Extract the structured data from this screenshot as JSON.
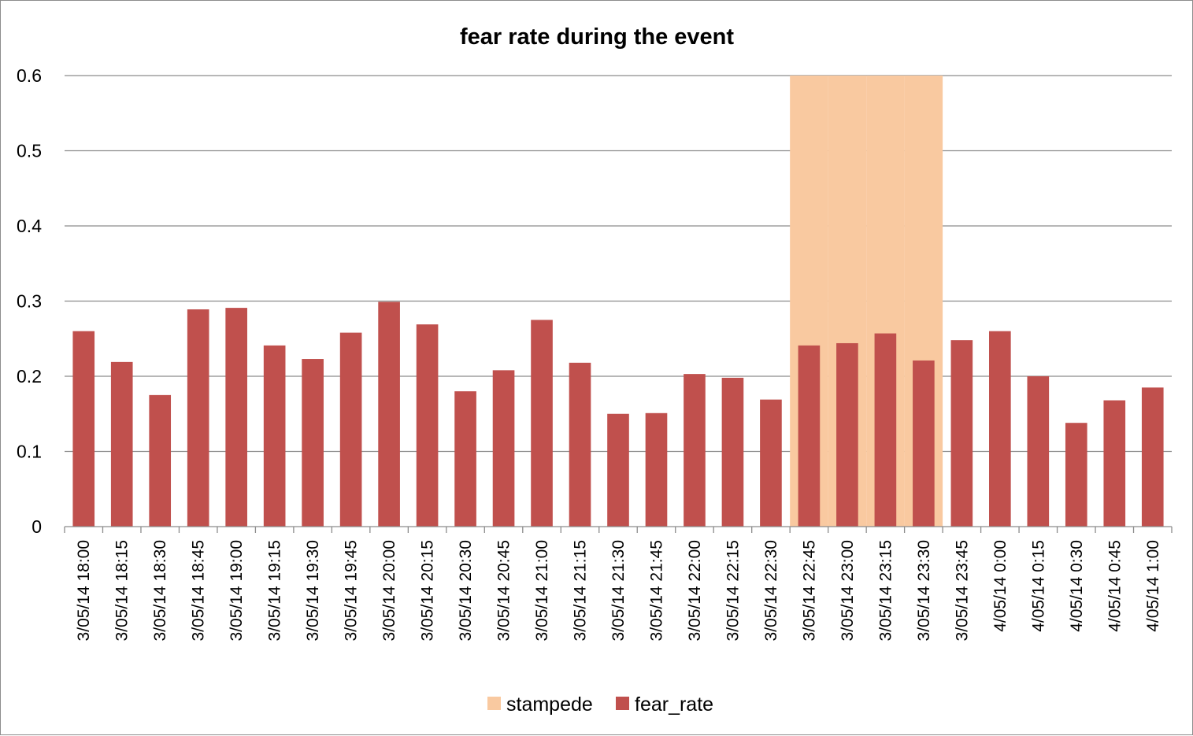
{
  "chart_data": {
    "type": "bar",
    "title": "fear rate during the event",
    "xlabel": "",
    "ylabel": "",
    "ylim": [
      0,
      0.6
    ],
    "yticks": [
      "0",
      "0.1",
      "0.2",
      "0.3",
      "0.4",
      "0.5",
      "0.6"
    ],
    "grid": true,
    "legend_position": "bottom",
    "categories": [
      "3/05/14 18:00",
      "3/05/14 18:15",
      "3/05/14 18:30",
      "3/05/14 18:45",
      "3/05/14 19:00",
      "3/05/14 19:15",
      "3/05/14 19:30",
      "3/05/14 19:45",
      "3/05/14 20:00",
      "3/05/14 20:15",
      "3/05/14 20:30",
      "3/05/14 20:45",
      "3/05/14 21:00",
      "3/05/14 21:15",
      "3/05/14 21:30",
      "3/05/14 21:45",
      "3/05/14 22:00",
      "3/05/14 22:15",
      "3/05/14 22:30",
      "3/05/14 22:45",
      "3/05/14 23:00",
      "3/05/14 23:15",
      "3/05/14 23:30",
      "3/05/14 23:45",
      "4/05/14 0:00",
      "4/05/14 0:15",
      "4/05/14 0:30",
      "4/05/14 0:45",
      "4/05/14 1:00"
    ],
    "series": [
      {
        "name": "stampede",
        "kind": "bar",
        "color": "#F9C9A0",
        "values": [
          0,
          0,
          0,
          0,
          0,
          0,
          0,
          0,
          0,
          0,
          0,
          0,
          0,
          0,
          0,
          0,
          0,
          0,
          0,
          0.6,
          0.6,
          0.6,
          0.6,
          0,
          0,
          0,
          0,
          0,
          0
        ]
      },
      {
        "name": "fear_rate",
        "kind": "bar",
        "color": "#C0504D",
        "values": [
          0.26,
          0.219,
          0.175,
          0.289,
          0.291,
          0.241,
          0.223,
          0.258,
          0.299,
          0.269,
          0.18,
          0.208,
          0.275,
          0.218,
          0.15,
          0.151,
          0.203,
          0.198,
          0.169,
          0.241,
          0.244,
          0.257,
          0.221,
          0.248,
          0.26,
          0.2,
          0.138,
          0.168,
          0.185
        ]
      }
    ]
  },
  "colors": {
    "gridline": "#8c8c8c",
    "axis": "#8c8c8c",
    "text": "#000000"
  }
}
